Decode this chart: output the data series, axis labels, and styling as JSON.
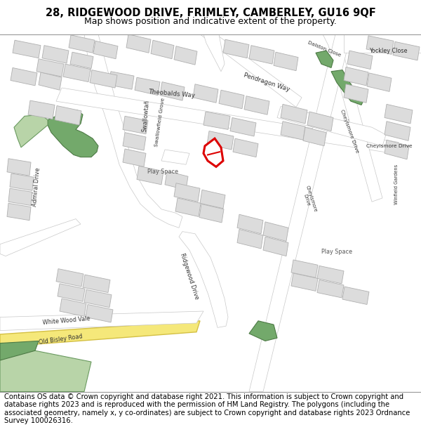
{
  "title_line1": "28, RIDGEWOOD DRIVE, FRIMLEY, CAMBERLEY, GU16 9QF",
  "title_line2": "Map shows position and indicative extent of the property.",
  "copyright_text": "Contains OS data © Crown copyright and database right 2021. This information is subject to Crown copyright and database rights 2023 and is reproduced with the permission of HM Land Registry. The polygons (including the associated geometry, namely x, y co-ordinates) are subject to Crown copyright and database rights 2023 Ordnance Survey 100026316.",
  "map_bg": "#f2f0eb",
  "road_color": "#ffffff",
  "road_edge": "#c8c8c8",
  "building_color": "#dcdcdc",
  "building_edge": "#b0b0b0",
  "green_color": "#73a96b",
  "green_light": "#b8d4a8",
  "yellow_road": "#f5e87a",
  "yellow_edge": "#d4c044",
  "red_color": "#dd0000",
  "title_fontsize": 10.5,
  "subtitle_fontsize": 9,
  "copyright_fontsize": 7.2
}
